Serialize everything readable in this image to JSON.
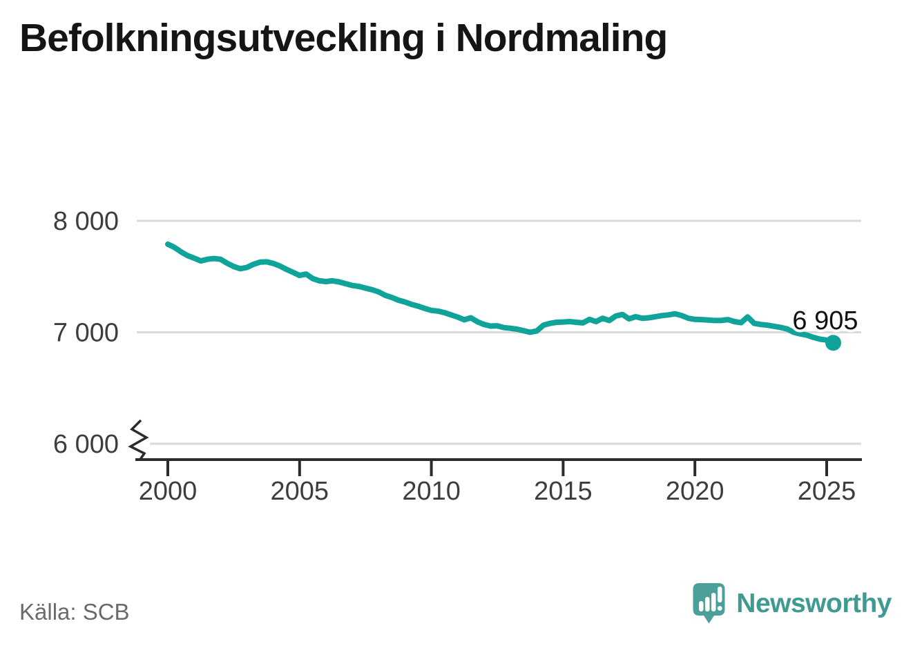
{
  "title": "Befolkningsutveckling i Nordmaling",
  "source": {
    "text": "Källa: SCB"
  },
  "branding": {
    "name": "Newsworthy"
  },
  "colors": {
    "line": "#10a39a",
    "grid": "#d9d9d9",
    "axis": "#2b2b2b",
    "tick_label": "#3d3d3d",
    "title_text": "#151515",
    "source_text": "#6a6a6a",
    "logo_mark": "#4da09a",
    "logo_text": "#3f9a92",
    "endpoint_label": "#111111"
  },
  "chart_data": {
    "type": "line",
    "title": "Befolkningsutveckling i Nordmaling",
    "xlabel": "",
    "ylabel": "",
    "x_ticks": [
      2000,
      2005,
      2010,
      2015,
      2020,
      2025
    ],
    "y_ticks": [
      {
        "value": 6000,
        "label": "6 000"
      },
      {
        "value": 7000,
        "label": "7 000"
      },
      {
        "value": 8000,
        "label": "8 000"
      }
    ],
    "ylim": [
      6000,
      8000
    ],
    "xlim": [
      2000,
      2026.3
    ],
    "grid": "horizontal",
    "legend": "none",
    "axis_break_below": 6000,
    "end_label": "6 905",
    "end_value": 6905,
    "series": [
      {
        "name": "Folkmängd",
        "points": [
          [
            2000.0,
            7790
          ],
          [
            2000.25,
            7762
          ],
          [
            2000.5,
            7722
          ],
          [
            2000.75,
            7688
          ],
          [
            2001.0,
            7665
          ],
          [
            2001.25,
            7640
          ],
          [
            2001.5,
            7655
          ],
          [
            2001.75,
            7662
          ],
          [
            2002.0,
            7655
          ],
          [
            2002.25,
            7620
          ],
          [
            2002.5,
            7590
          ],
          [
            2002.75,
            7570
          ],
          [
            2003.0,
            7582
          ],
          [
            2003.25,
            7610
          ],
          [
            2003.5,
            7630
          ],
          [
            2003.75,
            7632
          ],
          [
            2004.0,
            7618
          ],
          [
            2004.25,
            7595
          ],
          [
            2004.5,
            7565
          ],
          [
            2004.75,
            7538
          ],
          [
            2005.0,
            7510
          ],
          [
            2005.25,
            7522
          ],
          [
            2005.5,
            7482
          ],
          [
            2005.75,
            7462
          ],
          [
            2006.0,
            7455
          ],
          [
            2006.25,
            7462
          ],
          [
            2006.5,
            7452
          ],
          [
            2006.75,
            7436
          ],
          [
            2007.0,
            7420
          ],
          [
            2007.25,
            7412
          ],
          [
            2007.5,
            7396
          ],
          [
            2007.75,
            7382
          ],
          [
            2008.0,
            7362
          ],
          [
            2008.25,
            7332
          ],
          [
            2008.5,
            7312
          ],
          [
            2008.75,
            7288
          ],
          [
            2009.0,
            7272
          ],
          [
            2009.25,
            7250
          ],
          [
            2009.5,
            7234
          ],
          [
            2009.75,
            7214
          ],
          [
            2010.0,
            7196
          ],
          [
            2010.25,
            7190
          ],
          [
            2010.5,
            7176
          ],
          [
            2010.75,
            7156
          ],
          [
            2011.0,
            7136
          ],
          [
            2011.25,
            7112
          ],
          [
            2011.5,
            7130
          ],
          [
            2011.75,
            7094
          ],
          [
            2012.0,
            7070
          ],
          [
            2012.25,
            7056
          ],
          [
            2012.5,
            7058
          ],
          [
            2012.75,
            7042
          ],
          [
            2013.0,
            7036
          ],
          [
            2013.25,
            7028
          ],
          [
            2013.5,
            7014
          ],
          [
            2013.75,
            7000
          ],
          [
            2014.0,
            7012
          ],
          [
            2014.25,
            7064
          ],
          [
            2014.5,
            7080
          ],
          [
            2014.75,
            7090
          ],
          [
            2015.0,
            7092
          ],
          [
            2015.25,
            7096
          ],
          [
            2015.5,
            7090
          ],
          [
            2015.75,
            7084
          ],
          [
            2016.0,
            7116
          ],
          [
            2016.25,
            7096
          ],
          [
            2016.5,
            7126
          ],
          [
            2016.75,
            7106
          ],
          [
            2017.0,
            7146
          ],
          [
            2017.25,
            7160
          ],
          [
            2017.5,
            7120
          ],
          [
            2017.75,
            7140
          ],
          [
            2018.0,
            7126
          ],
          [
            2018.25,
            7130
          ],
          [
            2018.5,
            7140
          ],
          [
            2018.75,
            7150
          ],
          [
            2019.0,
            7156
          ],
          [
            2019.25,
            7166
          ],
          [
            2019.5,
            7150
          ],
          [
            2019.75,
            7126
          ],
          [
            2020.0,
            7116
          ],
          [
            2020.25,
            7114
          ],
          [
            2020.5,
            7110
          ],
          [
            2020.75,
            7106
          ],
          [
            2021.0,
            7106
          ],
          [
            2021.25,
            7114
          ],
          [
            2021.5,
            7096
          ],
          [
            2021.75,
            7086
          ],
          [
            2022.0,
            7138
          ],
          [
            2022.25,
            7080
          ],
          [
            2022.5,
            7070
          ],
          [
            2022.75,
            7064
          ],
          [
            2023.0,
            7054
          ],
          [
            2023.25,
            7044
          ],
          [
            2023.5,
            7030
          ],
          [
            2023.75,
            7000
          ],
          [
            2024.0,
            6986
          ],
          [
            2024.25,
            6974
          ],
          [
            2024.5,
            6954
          ],
          [
            2024.75,
            6938
          ],
          [
            2025.0,
            6930
          ],
          [
            2025.25,
            6905
          ]
        ]
      }
    ]
  }
}
